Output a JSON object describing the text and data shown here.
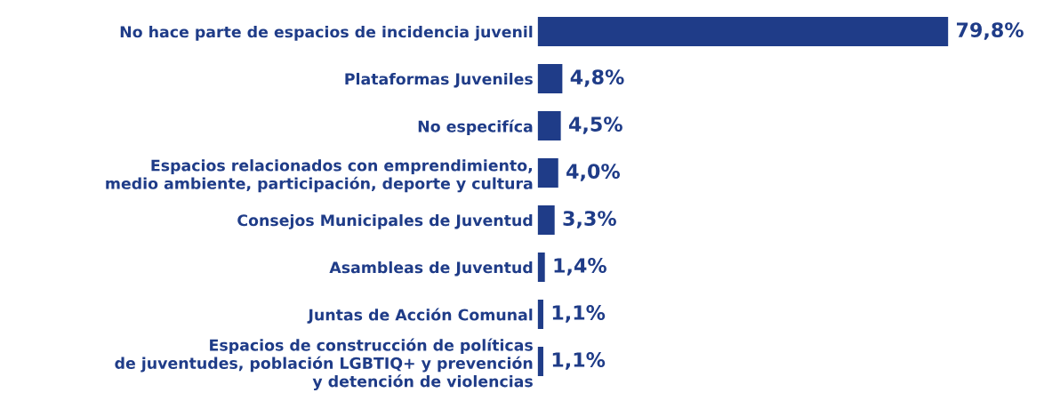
{
  "chart_data": {
    "type": "bar",
    "orientation": "horizontal",
    "categories": [
      "No hace parte de espacios de incidencia juvenil",
      "Plataformas Juveniles",
      "No especifíca",
      "Espacios relacionados con emprendimiento,\nmedio ambiente, participación, deporte y cultura",
      "Consejos Municipales de Juventud",
      "Asambleas de Juventud",
      "Juntas de Acción Comunal",
      "Espacios de construcción de políticas\nde juventudes, población LGBTIQ+ y prevención\ny detención de violencias"
    ],
    "values": [
      79.8,
      4.8,
      4.5,
      4.0,
      3.3,
      1.4,
      1.1,
      1.1
    ],
    "value_labels": [
      "79,8%",
      "4,8%",
      "4,5%",
      "4,0%",
      "3,3%",
      "1,4%",
      "1,1%",
      "1,1%"
    ],
    "color": "#1f3c88",
    "tick_labels": "y",
    "grid": false,
    "legend": false
  }
}
